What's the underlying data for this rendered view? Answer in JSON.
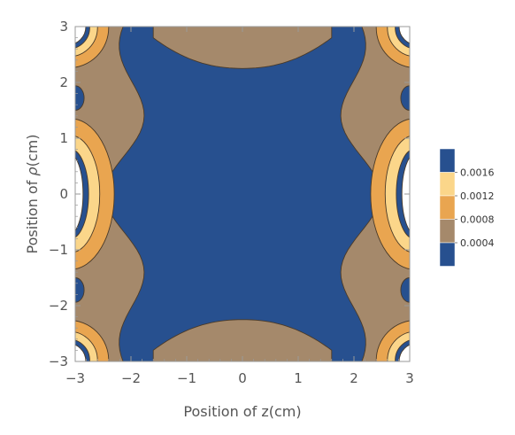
{
  "chart_data": {
    "type": "heatmap",
    "subtype": "contour",
    "title": "",
    "xlabel": "Position of z(cm)",
    "ylabel_prefix": "Position of ",
    "ylabel_symbol": "ρ",
    "ylabel_suffix": "(cm)",
    "xlim": [
      -3,
      3
    ],
    "ylim": [
      -3,
      3
    ],
    "x_ticks": [
      {
        "value": -3,
        "label": "−3"
      },
      {
        "value": -2,
        "label": "−2"
      },
      {
        "value": -1,
        "label": "−1"
      },
      {
        "value": 0,
        "label": "0"
      },
      {
        "value": 1,
        "label": "1"
      },
      {
        "value": 2,
        "label": "2"
      },
      {
        "value": 3,
        "label": "3"
      }
    ],
    "y_ticks": [
      {
        "value": 3,
        "label": "3"
      },
      {
        "value": 2,
        "label": "2"
      },
      {
        "value": 1,
        "label": "1"
      },
      {
        "value": 0,
        "label": "0"
      },
      {
        "value": -1,
        "label": "−1"
      },
      {
        "value": -2,
        "label": "−2"
      },
      {
        "value": -3,
        "label": "−3"
      }
    ],
    "contour_levels": [
      0.0004,
      0.0008,
      0.0012,
      0.0016
    ],
    "legend": {
      "placement": "right",
      "bands": [
        {
          "range": [
            0.0016,
            null
          ],
          "color": "#27508f"
        },
        {
          "range": [
            0.0012,
            0.0016
          ],
          "color": "#fbd68a"
        },
        {
          "range": [
            0.0008,
            0.0012
          ],
          "color": "#e9a550"
        },
        {
          "range": [
            0.0004,
            0.0008
          ],
          "color": "#a5896b"
        },
        {
          "range": [
            null,
            0.0004
          ],
          "color": "#27508f"
        }
      ],
      "labels": [
        {
          "value": 0.0016,
          "text": "0.0016"
        },
        {
          "value": 0.0012,
          "text": "0.0012"
        },
        {
          "value": 0.0008,
          "text": "0.0008"
        },
        {
          "value": 0.0004,
          "text": "0.0004"
        }
      ]
    },
    "colors": {
      "low": "#27508f",
      "mid_low": "#a5896b",
      "mid": "#e9a550",
      "mid_high": "#fbd68a",
      "high_region": "#ffffff",
      "contour_line": "#4a3a28",
      "frame": "#9a9a9a"
    },
    "grid": false
  }
}
